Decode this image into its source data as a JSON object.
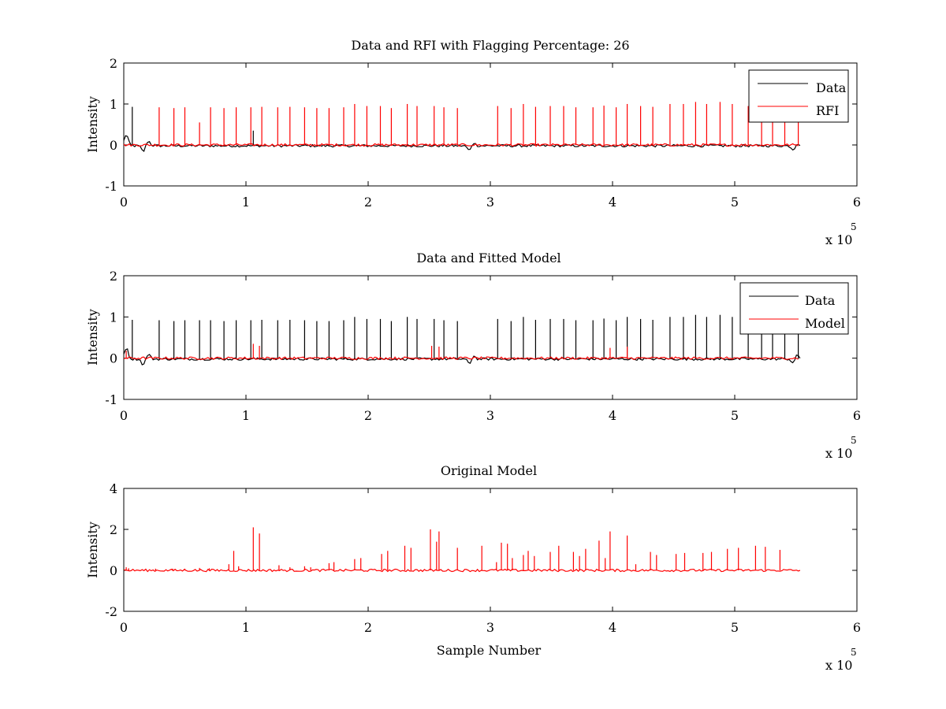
{
  "colors": {
    "data": "#000000",
    "rfi": "#ff0000",
    "background": "#ffffff"
  },
  "chart_data": [
    {
      "type": "line",
      "title": "Data and RFI with Flagging Percentage: 26",
      "xlabel": "",
      "ylabel": "Intensity",
      "xlim": [
        0,
        600000
      ],
      "ylim": [
        -1,
        2
      ],
      "xticks": [
        0,
        1,
        2,
        3,
        4,
        5,
        6
      ],
      "yticks": [
        -1,
        0,
        1,
        2
      ],
      "x_exponent_label": "x 10",
      "x_exponent_power": "5",
      "legend": {
        "placement": "top-right",
        "entries": [
          "Data",
          "RFI"
        ]
      },
      "series": [
        {
          "name": "Data",
          "color": "#000000",
          "baseline": -0.02,
          "x_end": 554000,
          "spikes": [
            {
              "x": 7000,
              "y": 0.93
            },
            {
              "x": 106000,
              "y": 0.35
            }
          ],
          "bumps": [
            {
              "x": 2000,
              "y": 0.25
            },
            {
              "x": 16000,
              "y": -0.16
            },
            {
              "x": 20000,
              "y": 0.1
            },
            {
              "x": 283000,
              "y": -0.15
            },
            {
              "x": 286000,
              "y": 0.07
            },
            {
              "x": 548000,
              "y": -0.12
            },
            {
              "x": 551000,
              "y": 0.05
            }
          ]
        },
        {
          "name": "RFI",
          "color": "#ff0000",
          "baseline": 0.0,
          "spikes": [
            {
              "x": 29000,
              "y": 0.92
            },
            {
              "x": 41000,
              "y": 0.9
            },
            {
              "x": 50000,
              "y": 0.92
            },
            {
              "x": 62000,
              "y": 0.55
            },
            {
              "x": 71000,
              "y": 0.92
            },
            {
              "x": 82000,
              "y": 0.9
            },
            {
              "x": 92000,
              "y": 0.92
            },
            {
              "x": 104000,
              "y": 0.92
            },
            {
              "x": 113000,
              "y": 0.93
            },
            {
              "x": 126000,
              "y": 0.92
            },
            {
              "x": 136000,
              "y": 0.93
            },
            {
              "x": 148000,
              "y": 0.92
            },
            {
              "x": 158000,
              "y": 0.9
            },
            {
              "x": 168000,
              "y": 0.9
            },
            {
              "x": 180000,
              "y": 0.92
            },
            {
              "x": 189000,
              "y": 1.0
            },
            {
              "x": 199000,
              "y": 0.95
            },
            {
              "x": 210000,
              "y": 0.95
            },
            {
              "x": 219000,
              "y": 0.9
            },
            {
              "x": 232000,
              "y": 1.0
            },
            {
              "x": 240000,
              "y": 0.95
            },
            {
              "x": 254000,
              "y": 0.95
            },
            {
              "x": 262000,
              "y": 0.92
            },
            {
              "x": 273000,
              "y": 0.9
            },
            {
              "x": 306000,
              "y": 0.95
            },
            {
              "x": 317000,
              "y": 0.9
            },
            {
              "x": 327000,
              "y": 1.0
            },
            {
              "x": 337000,
              "y": 0.93
            },
            {
              "x": 349000,
              "y": 0.95
            },
            {
              "x": 360000,
              "y": 0.95
            },
            {
              "x": 370000,
              "y": 0.92
            },
            {
              "x": 384000,
              "y": 0.92
            },
            {
              "x": 393000,
              "y": 0.96
            },
            {
              "x": 403000,
              "y": 0.92
            },
            {
              "x": 412000,
              "y": 1.0
            },
            {
              "x": 423000,
              "y": 0.95
            },
            {
              "x": 433000,
              "y": 0.93
            },
            {
              "x": 447000,
              "y": 1.0
            },
            {
              "x": 458000,
              "y": 1.0
            },
            {
              "x": 468000,
              "y": 1.05
            },
            {
              "x": 477000,
              "y": 1.0
            },
            {
              "x": 488000,
              "y": 1.05
            },
            {
              "x": 498000,
              "y": 1.0
            },
            {
              "x": 511000,
              "y": 0.95
            },
            {
              "x": 522000,
              "y": 0.95
            },
            {
              "x": 531000,
              "y": 0.93
            },
            {
              "x": 541000,
              "y": 0.9
            },
            {
              "x": 552000,
              "y": 0.85
            }
          ]
        }
      ]
    },
    {
      "type": "line",
      "title": "Data and Fitted Model",
      "xlabel": "",
      "ylabel": "Intensity",
      "xlim": [
        0,
        600000
      ],
      "ylim": [
        -1,
        2
      ],
      "xticks": [
        0,
        1,
        2,
        3,
        4,
        5,
        6
      ],
      "yticks": [
        -1,
        0,
        1,
        2
      ],
      "x_exponent_label": "x 10",
      "x_exponent_power": "5",
      "legend": {
        "placement": "top-right",
        "entries": [
          "Data",
          "Model"
        ]
      },
      "series": [
        {
          "name": "Data",
          "color": "#000000",
          "baseline": -0.02,
          "x_end": 554000,
          "spikes": [
            {
              "x": 7000,
              "y": 0.93
            },
            {
              "x": 29000,
              "y": 0.92
            },
            {
              "x": 41000,
              "y": 0.9
            },
            {
              "x": 50000,
              "y": 0.92
            },
            {
              "x": 62000,
              "y": 0.92
            },
            {
              "x": 71000,
              "y": 0.92
            },
            {
              "x": 82000,
              "y": 0.9
            },
            {
              "x": 92000,
              "y": 0.92
            },
            {
              "x": 104000,
              "y": 0.92
            },
            {
              "x": 113000,
              "y": 0.93
            },
            {
              "x": 126000,
              "y": 0.92
            },
            {
              "x": 136000,
              "y": 0.93
            },
            {
              "x": 148000,
              "y": 0.92
            },
            {
              "x": 158000,
              "y": 0.9
            },
            {
              "x": 168000,
              "y": 0.9
            },
            {
              "x": 180000,
              "y": 0.92
            },
            {
              "x": 189000,
              "y": 1.0
            },
            {
              "x": 199000,
              "y": 0.95
            },
            {
              "x": 210000,
              "y": 0.95
            },
            {
              "x": 219000,
              "y": 0.9
            },
            {
              "x": 232000,
              "y": 1.0
            },
            {
              "x": 240000,
              "y": 0.95
            },
            {
              "x": 254000,
              "y": 0.95
            },
            {
              "x": 262000,
              "y": 0.92
            },
            {
              "x": 273000,
              "y": 0.9
            },
            {
              "x": 306000,
              "y": 0.95
            },
            {
              "x": 317000,
              "y": 0.9
            },
            {
              "x": 327000,
              "y": 1.0
            },
            {
              "x": 337000,
              "y": 0.93
            },
            {
              "x": 349000,
              "y": 0.95
            },
            {
              "x": 360000,
              "y": 0.95
            },
            {
              "x": 370000,
              "y": 0.92
            },
            {
              "x": 384000,
              "y": 0.92
            },
            {
              "x": 393000,
              "y": 0.96
            },
            {
              "x": 403000,
              "y": 0.92
            },
            {
              "x": 412000,
              "y": 1.0
            },
            {
              "x": 423000,
              "y": 0.95
            },
            {
              "x": 433000,
              "y": 0.93
            },
            {
              "x": 447000,
              "y": 1.0
            },
            {
              "x": 458000,
              "y": 1.0
            },
            {
              "x": 468000,
              "y": 1.05
            },
            {
              "x": 477000,
              "y": 1.0
            },
            {
              "x": 488000,
              "y": 1.05
            },
            {
              "x": 498000,
              "y": 1.0
            },
            {
              "x": 511000,
              "y": 0.95
            },
            {
              "x": 522000,
              "y": 0.95
            },
            {
              "x": 531000,
              "y": 0.93
            },
            {
              "x": 541000,
              "y": 0.9
            },
            {
              "x": 552000,
              "y": 0.85
            }
          ],
          "bumps": [
            {
              "x": 2000,
              "y": 0.25
            },
            {
              "x": 16000,
              "y": -0.16
            },
            {
              "x": 20000,
              "y": 0.1
            },
            {
              "x": 283000,
              "y": -0.15
            },
            {
              "x": 286000,
              "y": 0.07
            },
            {
              "x": 548000,
              "y": -0.12
            },
            {
              "x": 551000,
              "y": 0.08
            }
          ]
        },
        {
          "name": "Model",
          "color": "#ff0000",
          "baseline": 0.0,
          "spikes": [
            {
              "x": 2000,
              "y": 0.18
            },
            {
              "x": 106000,
              "y": 0.35
            },
            {
              "x": 111000,
              "y": 0.3
            },
            {
              "x": 252000,
              "y": 0.3
            },
            {
              "x": 258000,
              "y": 0.28
            },
            {
              "x": 398000,
              "y": 0.25
            },
            {
              "x": 412000,
              "y": 0.28
            }
          ]
        }
      ]
    },
    {
      "type": "line",
      "title": "Original Model",
      "xlabel": "Sample Number",
      "ylabel": "Intensity",
      "xlim": [
        0,
        600000
      ],
      "ylim": [
        -2,
        4
      ],
      "xticks": [
        0,
        1,
        2,
        3,
        4,
        5,
        6
      ],
      "yticks": [
        -2,
        0,
        2,
        4
      ],
      "x_exponent_label": "x 10",
      "x_exponent_power": "5",
      "legend": null,
      "series": [
        {
          "name": "",
          "color": "#ff0000",
          "baseline": 0.0,
          "x_end": 554000,
          "spikes": [
            {
              "x": 2000,
              "y": 0.15
            },
            {
              "x": 4000,
              "y": 0.1
            },
            {
              "x": 26000,
              "y": 0.08
            },
            {
              "x": 40000,
              "y": 0.08
            },
            {
              "x": 50000,
              "y": 0.08
            },
            {
              "x": 62000,
              "y": 0.12
            },
            {
              "x": 70000,
              "y": 0.1
            },
            {
              "x": 86000,
              "y": 0.3
            },
            {
              "x": 90000,
              "y": 0.95
            },
            {
              "x": 94000,
              "y": 0.2
            },
            {
              "x": 106000,
              "y": 2.1
            },
            {
              "x": 111000,
              "y": 1.8
            },
            {
              "x": 127000,
              "y": 0.25
            },
            {
              "x": 136000,
              "y": 0.15
            },
            {
              "x": 148000,
              "y": 0.2
            },
            {
              "x": 153000,
              "y": 0.15
            },
            {
              "x": 168000,
              "y": 0.35
            },
            {
              "x": 172000,
              "y": 0.4
            },
            {
              "x": 189000,
              "y": 0.55
            },
            {
              "x": 194000,
              "y": 0.6
            },
            {
              "x": 211000,
              "y": 0.8
            },
            {
              "x": 216000,
              "y": 0.95
            },
            {
              "x": 230000,
              "y": 1.2
            },
            {
              "x": 235000,
              "y": 1.1
            },
            {
              "x": 251000,
              "y": 2.0
            },
            {
              "x": 256000,
              "y": 1.4
            },
            {
              "x": 258000,
              "y": 1.9
            },
            {
              "x": 273000,
              "y": 1.1
            },
            {
              "x": 293000,
              "y": 1.2
            },
            {
              "x": 305000,
              "y": 0.4
            },
            {
              "x": 309000,
              "y": 1.35
            },
            {
              "x": 314000,
              "y": 1.3
            },
            {
              "x": 318000,
              "y": 0.6
            },
            {
              "x": 327000,
              "y": 0.75
            },
            {
              "x": 331000,
              "y": 0.95
            },
            {
              "x": 336000,
              "y": 0.7
            },
            {
              "x": 349000,
              "y": 0.9
            },
            {
              "x": 356000,
              "y": 1.2
            },
            {
              "x": 368000,
              "y": 0.9
            },
            {
              "x": 373000,
              "y": 0.7
            },
            {
              "x": 378000,
              "y": 1.05
            },
            {
              "x": 389000,
              "y": 1.45
            },
            {
              "x": 394000,
              "y": 0.6
            },
            {
              "x": 398000,
              "y": 1.9
            },
            {
              "x": 412000,
              "y": 1.7
            },
            {
              "x": 419000,
              "y": 0.3
            },
            {
              "x": 431000,
              "y": 0.9
            },
            {
              "x": 436000,
              "y": 0.75
            },
            {
              "x": 452000,
              "y": 0.8
            },
            {
              "x": 459000,
              "y": 0.85
            },
            {
              "x": 474000,
              "y": 0.85
            },
            {
              "x": 481000,
              "y": 0.9
            },
            {
              "x": 494000,
              "y": 1.05
            },
            {
              "x": 503000,
              "y": 1.1
            },
            {
              "x": 517000,
              "y": 1.2
            },
            {
              "x": 525000,
              "y": 1.15
            },
            {
              "x": 537000,
              "y": 1.0
            }
          ],
          "bumps": []
        }
      ]
    }
  ]
}
